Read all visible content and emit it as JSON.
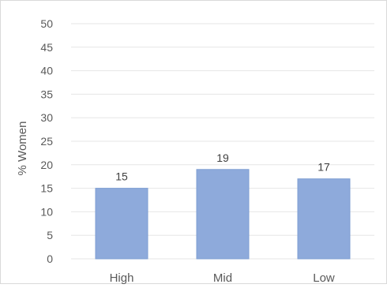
{
  "chart_data": {
    "type": "bar",
    "categories": [
      "High",
      "Mid",
      "Low"
    ],
    "values": [
      15,
      19,
      17
    ],
    "data_labels": [
      "15",
      "19",
      "17"
    ],
    "title": "",
    "xlabel": "",
    "ylabel": "% Women",
    "ylim": [
      0,
      50
    ],
    "yticks": [
      0,
      5,
      10,
      15,
      20,
      25,
      30,
      35,
      40,
      45,
      50
    ],
    "grid": true,
    "legend": "none",
    "colors": {
      "bar": "#8EAADB",
      "bar_edge": "#7F9FD3",
      "grid": "#E6E6E6",
      "axis_text": "#595959",
      "frame": "#D9D9D9"
    }
  }
}
